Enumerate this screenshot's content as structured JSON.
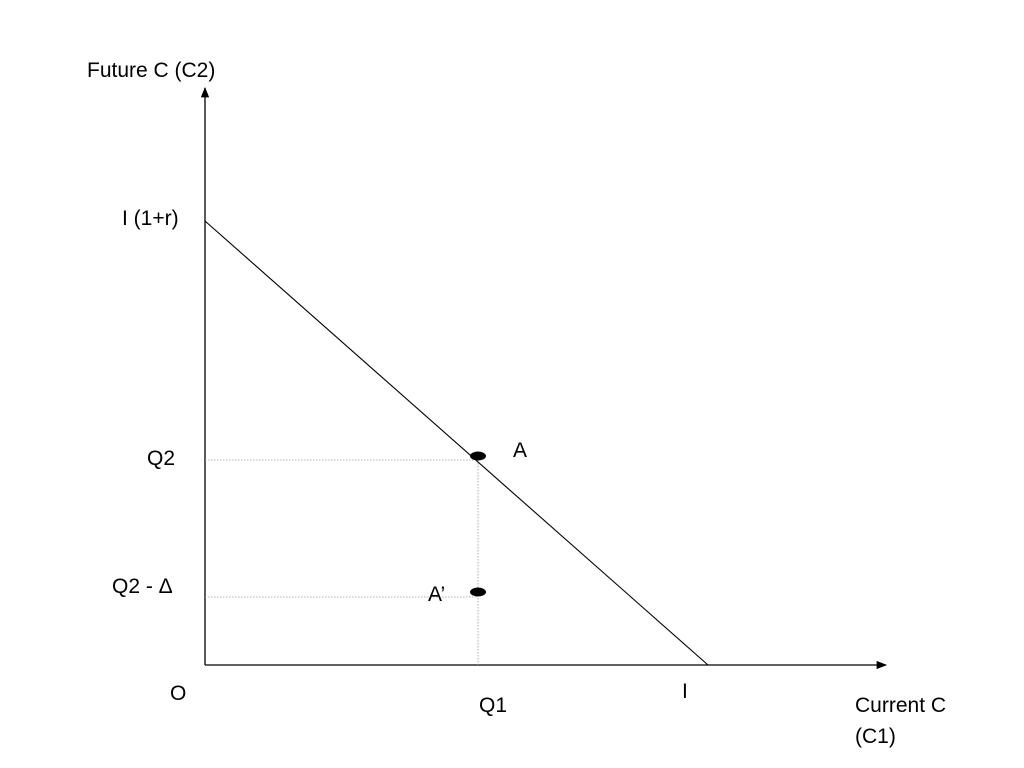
{
  "diagram": {
    "y_axis_label": "Future C (C2)",
    "x_axis_label_line1": "Current C",
    "x_axis_label_line2": "(C1)",
    "origin_label": "O",
    "y_intercept_label": "I (1+r)",
    "x_intercept_label": "I",
    "q2_label": "Q2",
    "q2_minus_delta_label": "Q2 - Δ",
    "q1_label": "Q1",
    "point_a_label": "A",
    "point_a_prime_label": "A’"
  }
}
